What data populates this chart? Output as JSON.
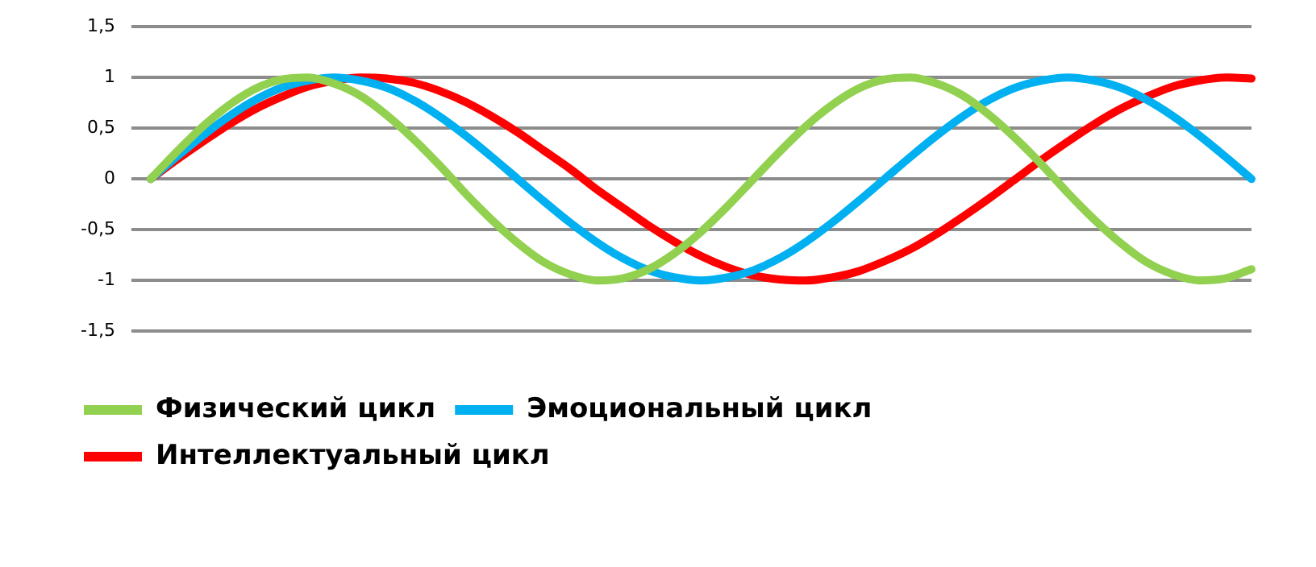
{
  "chart_data": {
    "type": "line",
    "categories": [
      null,
      null,
      null,
      null,
      null,
      null,
      null,
      null,
      null,
      null,
      null,
      null,
      null,
      null,
      null,
      null,
      null,
      null,
      null,
      null,
      null,
      null,
      null,
      null,
      null,
      null,
      null,
      null,
      null,
      null,
      null,
      null,
      null,
      null,
      null,
      null,
      null,
      null,
      null,
      null,
      null,
      null,
      null
    ],
    "series": [
      {
        "name": "Физический цикл",
        "color": "#92d050",
        "values": [
          0,
          0.27,
          0.52,
          0.73,
          0.89,
          0.98,
          1.0,
          0.94,
          0.82,
          0.63,
          0.4,
          0.14,
          -0.14,
          -0.4,
          -0.63,
          -0.82,
          -0.94,
          -1.0,
          -0.98,
          -0.89,
          -0.73,
          -0.52,
          -0.27,
          0,
          0.27,
          0.52,
          0.73,
          0.89,
          0.98,
          1.0,
          0.94,
          0.82,
          0.63,
          0.4,
          0.14,
          -0.14,
          -0.4,
          -0.63,
          -0.82,
          -0.94,
          -1.0,
          -0.98,
          -0.89
        ]
      },
      {
        "name": "Эмоциональный цикл",
        "color": "#00b0f0",
        "values": [
          0,
          0.22,
          0.43,
          0.62,
          0.78,
          0.9,
          0.97,
          1,
          0.97,
          0.9,
          0.78,
          0.62,
          0.43,
          0.22,
          0,
          -0.22,
          -0.43,
          -0.62,
          -0.78,
          -0.9,
          -0.97,
          -1,
          -0.97,
          -0.9,
          -0.78,
          -0.62,
          -0.43,
          -0.22,
          0,
          0.22,
          0.43,
          0.62,
          0.78,
          0.9,
          0.97,
          1,
          0.97,
          0.9,
          0.78,
          0.62,
          0.43,
          0.22,
          0
        ]
      },
      {
        "name": "Интеллектуальный цикл",
        "color": "#ff0000",
        "values": [
          0,
          0.19,
          0.37,
          0.54,
          0.69,
          0.81,
          0.91,
          0.97,
          1.0,
          0.99,
          0.95,
          0.87,
          0.76,
          0.62,
          0.46,
          0.28,
          0.1,
          -0.1,
          -0.28,
          -0.46,
          -0.62,
          -0.76,
          -0.87,
          -0.95,
          -0.99,
          -1.0,
          -0.97,
          -0.91,
          -0.81,
          -0.69,
          -0.54,
          -0.37,
          -0.19,
          0,
          0.19,
          0.37,
          0.54,
          0.69,
          0.81,
          0.91,
          0.97,
          1.0,
          0.99
        ]
      }
    ],
    "ylim": [
      -1.5,
      1.5
    ],
    "yticks": [
      {
        "value": -1.5,
        "label": "-1,5"
      },
      {
        "value": -1,
        "label": "-1"
      },
      {
        "value": -0.5,
        "label": "-0,5"
      },
      0,
      {
        "value": 0.5,
        "label": "0,5"
      },
      1,
      {
        "value": 1.5,
        "label": "1,5"
      }
    ],
    "grid": "y",
    "legend": "bottom",
    "marker": "none",
    "line_style": "solid"
  }
}
